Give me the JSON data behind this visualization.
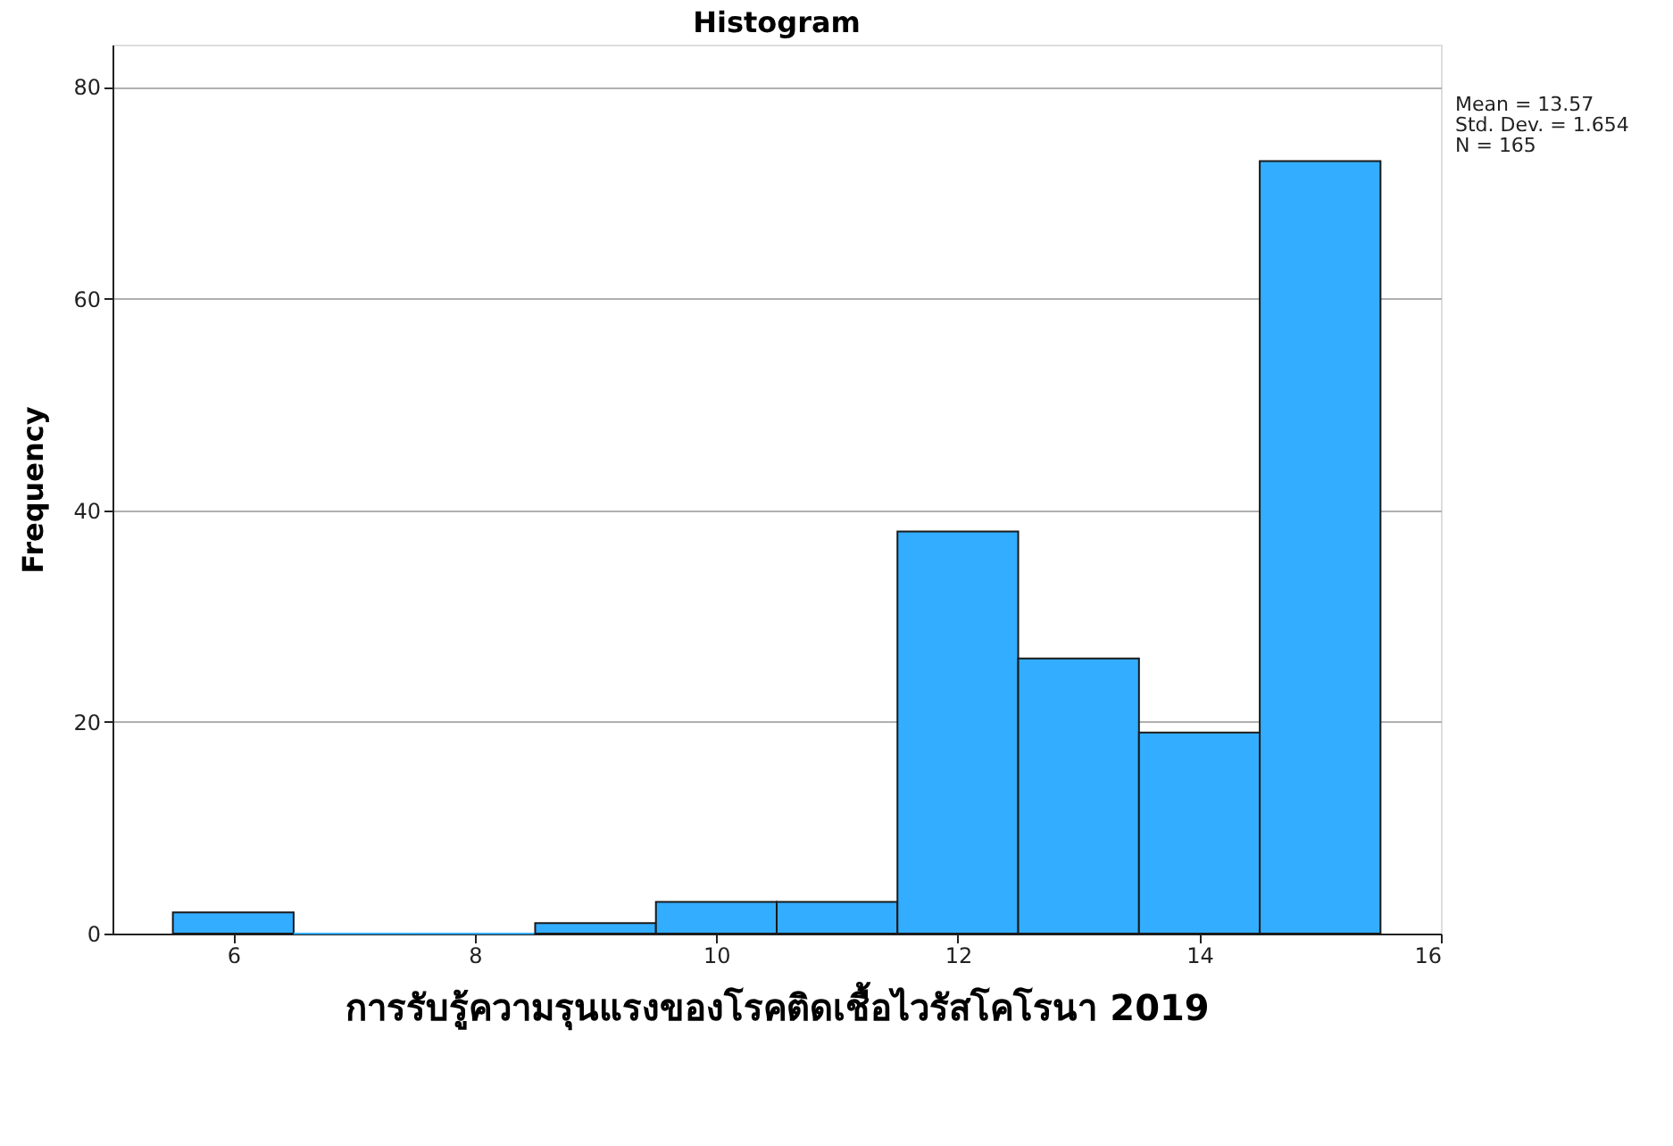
{
  "chart_data": {
    "type": "histogram",
    "title": "Histogram",
    "xlabel": "การรับรู้ความรุนแรงของโรคติดเชื้อไวรัสโคโรนา 2019",
    "ylabel": "Frequency",
    "bins": [
      5.5,
      6.5,
      7.5,
      8.5,
      9.5,
      10.5,
      11.5,
      12.5,
      13.5,
      14.5,
      15.5
    ],
    "values": [
      2,
      0,
      0,
      1,
      3,
      3,
      38,
      26,
      19,
      73
    ],
    "color": "#33adff",
    "xlim": [
      5,
      16
    ],
    "xticks": [
      6,
      8,
      10,
      12,
      14,
      16
    ],
    "ylim": [
      0,
      84
    ],
    "yticks": [
      0,
      20,
      40,
      60,
      80
    ],
    "grid": "y",
    "annotations": [
      "Mean = 13.57",
      "Std. Dev. = 1.654",
      "N = 165"
    ]
  }
}
